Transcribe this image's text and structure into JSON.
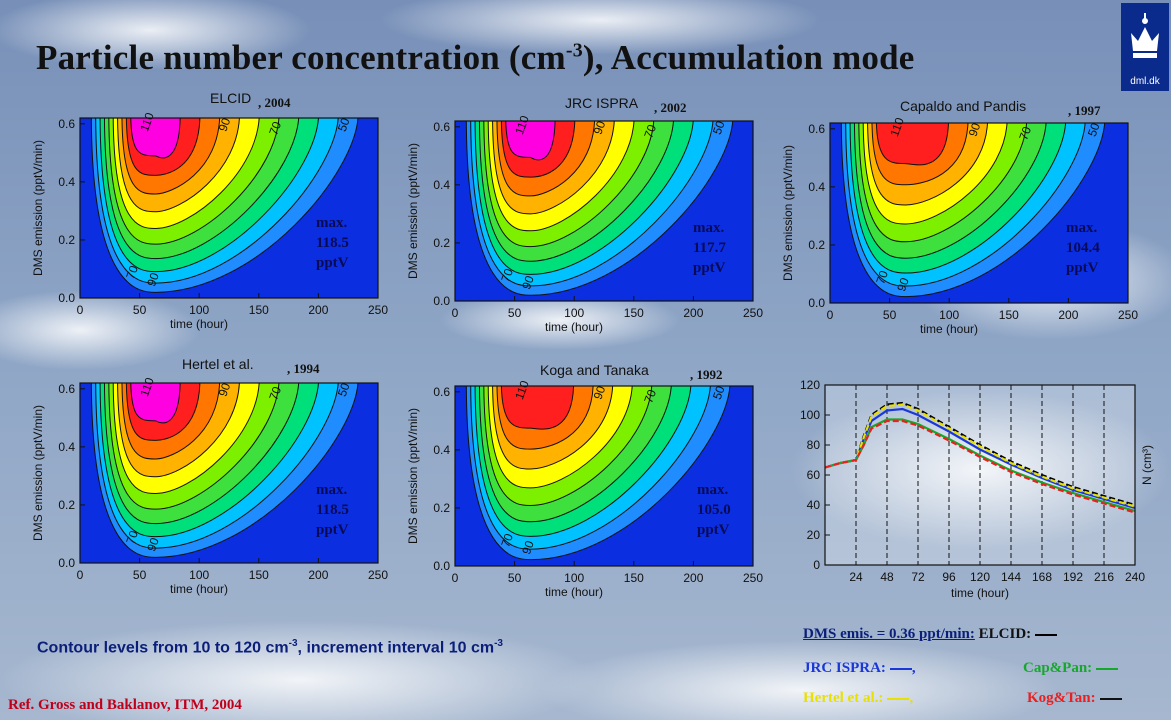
{
  "header": {
    "title_main": "Particle number concentration (cm",
    "title_sup": "-3",
    "title_end": "), Accumulation mode",
    "logo_text": "dml.dk"
  },
  "colors": {
    "sky": "#7e95ba",
    "levels": [
      "#ffffff",
      "#0b2ee0",
      "#1f8cff",
      "#00c2ff",
      "#00e07a",
      "#3de03d",
      "#7df000",
      "#ffff00",
      "#ffb300",
      "#ff7700",
      "#ff1f1f",
      "#ff00e0"
    ]
  },
  "contour_plots": [
    {
      "id": "elcid",
      "title": "ELCID",
      "year": ", 2004",
      "max_label": "max.\n118.5\npptV",
      "peak": 1.0,
      "xmax_tick": 250
    },
    {
      "id": "jrc",
      "title": "JRC ISPRA",
      "year": ", 2002",
      "max_label": "max.\n117.7\npptV",
      "peak": 0.99,
      "xmax_tick": 250
    },
    {
      "id": "capaldo",
      "title": "Capaldo and Pandis",
      "year": ", 1997",
      "max_label": "max.\n104.4\npptV",
      "peak": 0.88,
      "xmax_tick": 250
    },
    {
      "id": "hertel",
      "title": "Hertel et al.",
      "year": ", 1994",
      "max_label": "max.\n118.5\npptV",
      "peak": 1.0,
      "xmax_tick": 250
    },
    {
      "id": "koga",
      "title": "Koga and Tanaka",
      "year": ", 1992",
      "max_label": "max.\n105.0\npptV",
      "peak": 0.89,
      "xmax_tick": 250
    }
  ],
  "contour_axes": {
    "xlabel": "time (hour)",
    "ylabel": "DMS emission (pptV/min)",
    "xticks": [
      0,
      50,
      100,
      150,
      200,
      250
    ],
    "yticks": [
      "0.0",
      "0.2",
      "0.4",
      "0.6"
    ],
    "contour_labels": [
      "110",
      "90",
      "70",
      "50",
      "70",
      "90"
    ]
  },
  "chart_data": [
    {
      "type": "line",
      "title": "",
      "xlabel": "time (hour)",
      "ylabel": "N (cm³)",
      "xlim": [
        0,
        240
      ],
      "ylim": [
        0,
        120
      ],
      "xticks": [
        24,
        48,
        72,
        96,
        120,
        144,
        168,
        192,
        216,
        240
      ],
      "yticks": [
        0,
        20,
        40,
        60,
        80,
        100,
        120
      ],
      "grid": "vertical dashed at 24-hour intervals",
      "x": [
        0,
        12,
        24,
        30,
        36,
        48,
        60,
        72,
        96,
        120,
        144,
        168,
        192,
        216,
        240
      ],
      "series": [
        {
          "name": "ELCID",
          "color": "#000000",
          "dashed": true,
          "values": [
            65,
            68,
            70,
            86,
            100,
            107,
            108,
            104,
            92,
            80,
            69,
            60,
            52,
            46,
            40
          ]
        },
        {
          "name": "JRC ISPRA",
          "color": "#1a38d8",
          "dashed": false,
          "values": [
            65,
            68,
            70,
            84,
            96,
            103,
            104,
            100,
            89,
            77,
            67,
            58,
            50,
            44,
            38
          ]
        },
        {
          "name": "Cap&Pan",
          "color": "#16a82a",
          "dashed": false,
          "values": [
            65,
            68,
            70,
            80,
            92,
            97,
            97,
            94,
            84,
            73,
            63,
            55,
            48,
            42,
            36
          ]
        },
        {
          "name": "Hertel et al.",
          "color": "#e8e000",
          "dashed": true,
          "values": [
            65,
            68,
            70,
            85,
            99,
            106,
            107,
            103,
            91,
            79,
            68,
            59,
            51,
            45,
            39
          ]
        },
        {
          "name": "Kog&Tan",
          "color": "#e82020",
          "dashed": true,
          "values": [
            65,
            68,
            70,
            80,
            91,
            96,
            96,
            93,
            83,
            72,
            62,
            54,
            47,
            41,
            35
          ]
        }
      ]
    }
  ],
  "legend": {
    "dms_emis": "DMS emis. = 0.36 ppt/min:",
    "elcid": "ELCID:",
    "jrc": "JRC ISPRA:",
    "jrc_tail": ",",
    "cappan": "Cap&Pan:",
    "hertel": "Hertel et al.:",
    "hertel_tail": ",",
    "kogtan": "Kog&Tan:"
  },
  "bottom_note": {
    "text1": "Contour levels from 10 to 120 cm",
    "sup1": "-3",
    "text2": ", increment interval 10 cm",
    "sup2": "-3"
  },
  "reference": "Ref. Gross and Baklanov, ITM, 2004"
}
